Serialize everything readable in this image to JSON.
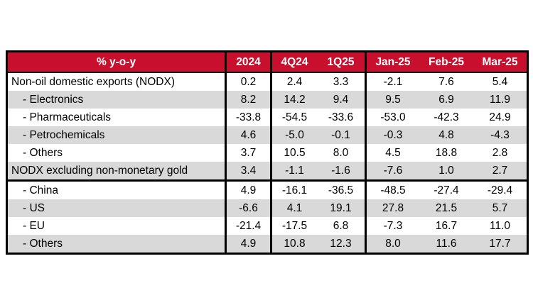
{
  "colors": {
    "header_bg": "#C8102E",
    "header_text": "#FFFFFF",
    "alt_row_bg": "#D9D9D9",
    "border": "#000000",
    "text": "#000000",
    "page_bg": "#FFFFFF"
  },
  "table": {
    "header": {
      "label_column": "% y-o-y",
      "columns": [
        "2024",
        "4Q24",
        "1Q25",
        "Jan-25",
        "Feb-25",
        "Mar-25"
      ]
    },
    "rows": [
      {
        "label": "Non-oil domestic exports (NODX)",
        "values": [
          "0.2",
          "2.4",
          "3.3",
          "-2.1",
          "7.6",
          "5.4"
        ]
      },
      {
        "label": "- Electronics",
        "values": [
          "8.2",
          "14.2",
          "9.4",
          "9.5",
          "6.9",
          "11.9"
        ]
      },
      {
        "label": "- Pharmaceuticals",
        "values": [
          "-33.8",
          "-54.5",
          "-33.6",
          "-53.0",
          "-42.3",
          "24.9"
        ]
      },
      {
        "label": "- Petrochemicals",
        "values": [
          "4.6",
          "-5.0",
          "-0.1",
          "-0.3",
          "4.8",
          "-4.3"
        ]
      },
      {
        "label": "- Others",
        "values": [
          "3.7",
          "10.5",
          "8.0",
          "4.5",
          "18.8",
          "2.8"
        ]
      },
      {
        "label": "NODX excluding non-monetary gold",
        "values": [
          "3.4",
          "-1.1",
          "-1.6",
          "-7.6",
          "1.0",
          "2.7"
        ]
      },
      {
        "label": "- China",
        "values": [
          "4.9",
          "-16.1",
          "-36.5",
          "-48.5",
          "-27.4",
          "-29.4"
        ]
      },
      {
        "label": "- US",
        "values": [
          "-6.6",
          "4.1",
          "19.1",
          "27.8",
          "21.5",
          "5.7"
        ]
      },
      {
        "label": "- EU",
        "values": [
          "-21.4",
          "-17.5",
          "6.8",
          "-7.3",
          "16.7",
          "11.0"
        ]
      },
      {
        "label": "- Others",
        "values": [
          "4.9",
          "10.8",
          "12.3",
          "8.0",
          "11.6",
          "17.7"
        ]
      }
    ]
  },
  "chart_data": {
    "type": "table",
    "title": "",
    "columns": [
      "% y-o-y",
      "2024",
      "4Q24",
      "1Q25",
      "Jan-25",
      "Feb-25",
      "Mar-25"
    ],
    "rows": [
      [
        "Non-oil domestic exports (NODX)",
        0.2,
        2.4,
        3.3,
        -2.1,
        7.6,
        5.4
      ],
      [
        "- Electronics",
        8.2,
        14.2,
        9.4,
        9.5,
        6.9,
        11.9
      ],
      [
        "- Pharmaceuticals",
        -33.8,
        -54.5,
        -33.6,
        -53.0,
        -42.3,
        24.9
      ],
      [
        "- Petrochemicals",
        4.6,
        -5.0,
        -0.1,
        -0.3,
        4.8,
        -4.3
      ],
      [
        "- Others",
        3.7,
        10.5,
        8.0,
        4.5,
        18.8,
        2.8
      ],
      [
        "NODX excluding non-monetary gold",
        3.4,
        -1.1,
        -1.6,
        -7.6,
        1.0,
        2.7
      ],
      [
        "- China",
        4.9,
        -16.1,
        -36.5,
        -48.5,
        -27.4,
        -29.4
      ],
      [
        "- US",
        -6.6,
        4.1,
        19.1,
        27.8,
        21.5,
        5.7
      ],
      [
        "- EU",
        -21.4,
        -17.5,
        6.8,
        -7.3,
        16.7,
        11.0
      ],
      [
        "- Others",
        4.9,
        10.8,
        12.3,
        8.0,
        11.6,
        17.7
      ]
    ],
    "layout": {
      "column_groups": [
        [
          "% y-o-y"
        ],
        [
          "2024"
        ],
        [
          "4Q24",
          "1Q25"
        ],
        [
          "Jan-25",
          "Feb-25",
          "Mar-25"
        ]
      ],
      "section_break_before_row": 6,
      "alternating_row_shading": true,
      "header_style": "red-background-white-bold"
    }
  }
}
